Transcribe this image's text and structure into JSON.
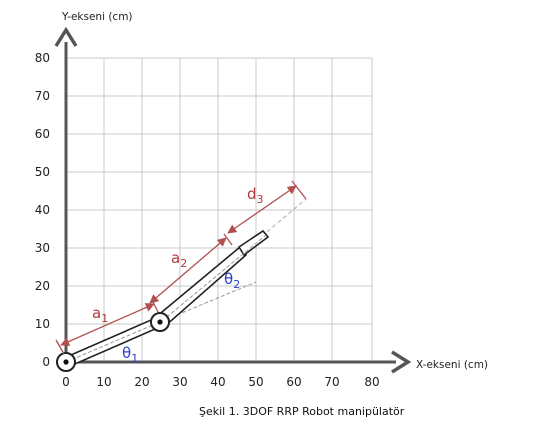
{
  "axes": {
    "x_title": "X-ekseni (cm)",
    "y_title": "Y-ekseni (cm)",
    "x_ticks": [
      "0",
      "10",
      "20",
      "30",
      "40",
      "50",
      "60",
      "70",
      "80"
    ],
    "y_ticks": [
      "0",
      "10",
      "20",
      "30",
      "40",
      "50",
      "60",
      "70",
      "80"
    ]
  },
  "labels": {
    "a1": {
      "main": "a",
      "sub": "1"
    },
    "a2": {
      "main": "a",
      "sub": "2"
    },
    "d3": {
      "main": "d",
      "sub": "3"
    },
    "theta1": {
      "main": "θ",
      "sub": "1"
    },
    "theta2": {
      "main": "θ",
      "sub": "2"
    }
  },
  "caption": "Şekil 1. 3DOF RRP Robot manipülatör",
  "colors": {
    "grid": "#c8c8c8",
    "axis": "#555555",
    "dimension": "#b05050",
    "angle_label": "#2a40c8",
    "link": "#222222"
  }
}
